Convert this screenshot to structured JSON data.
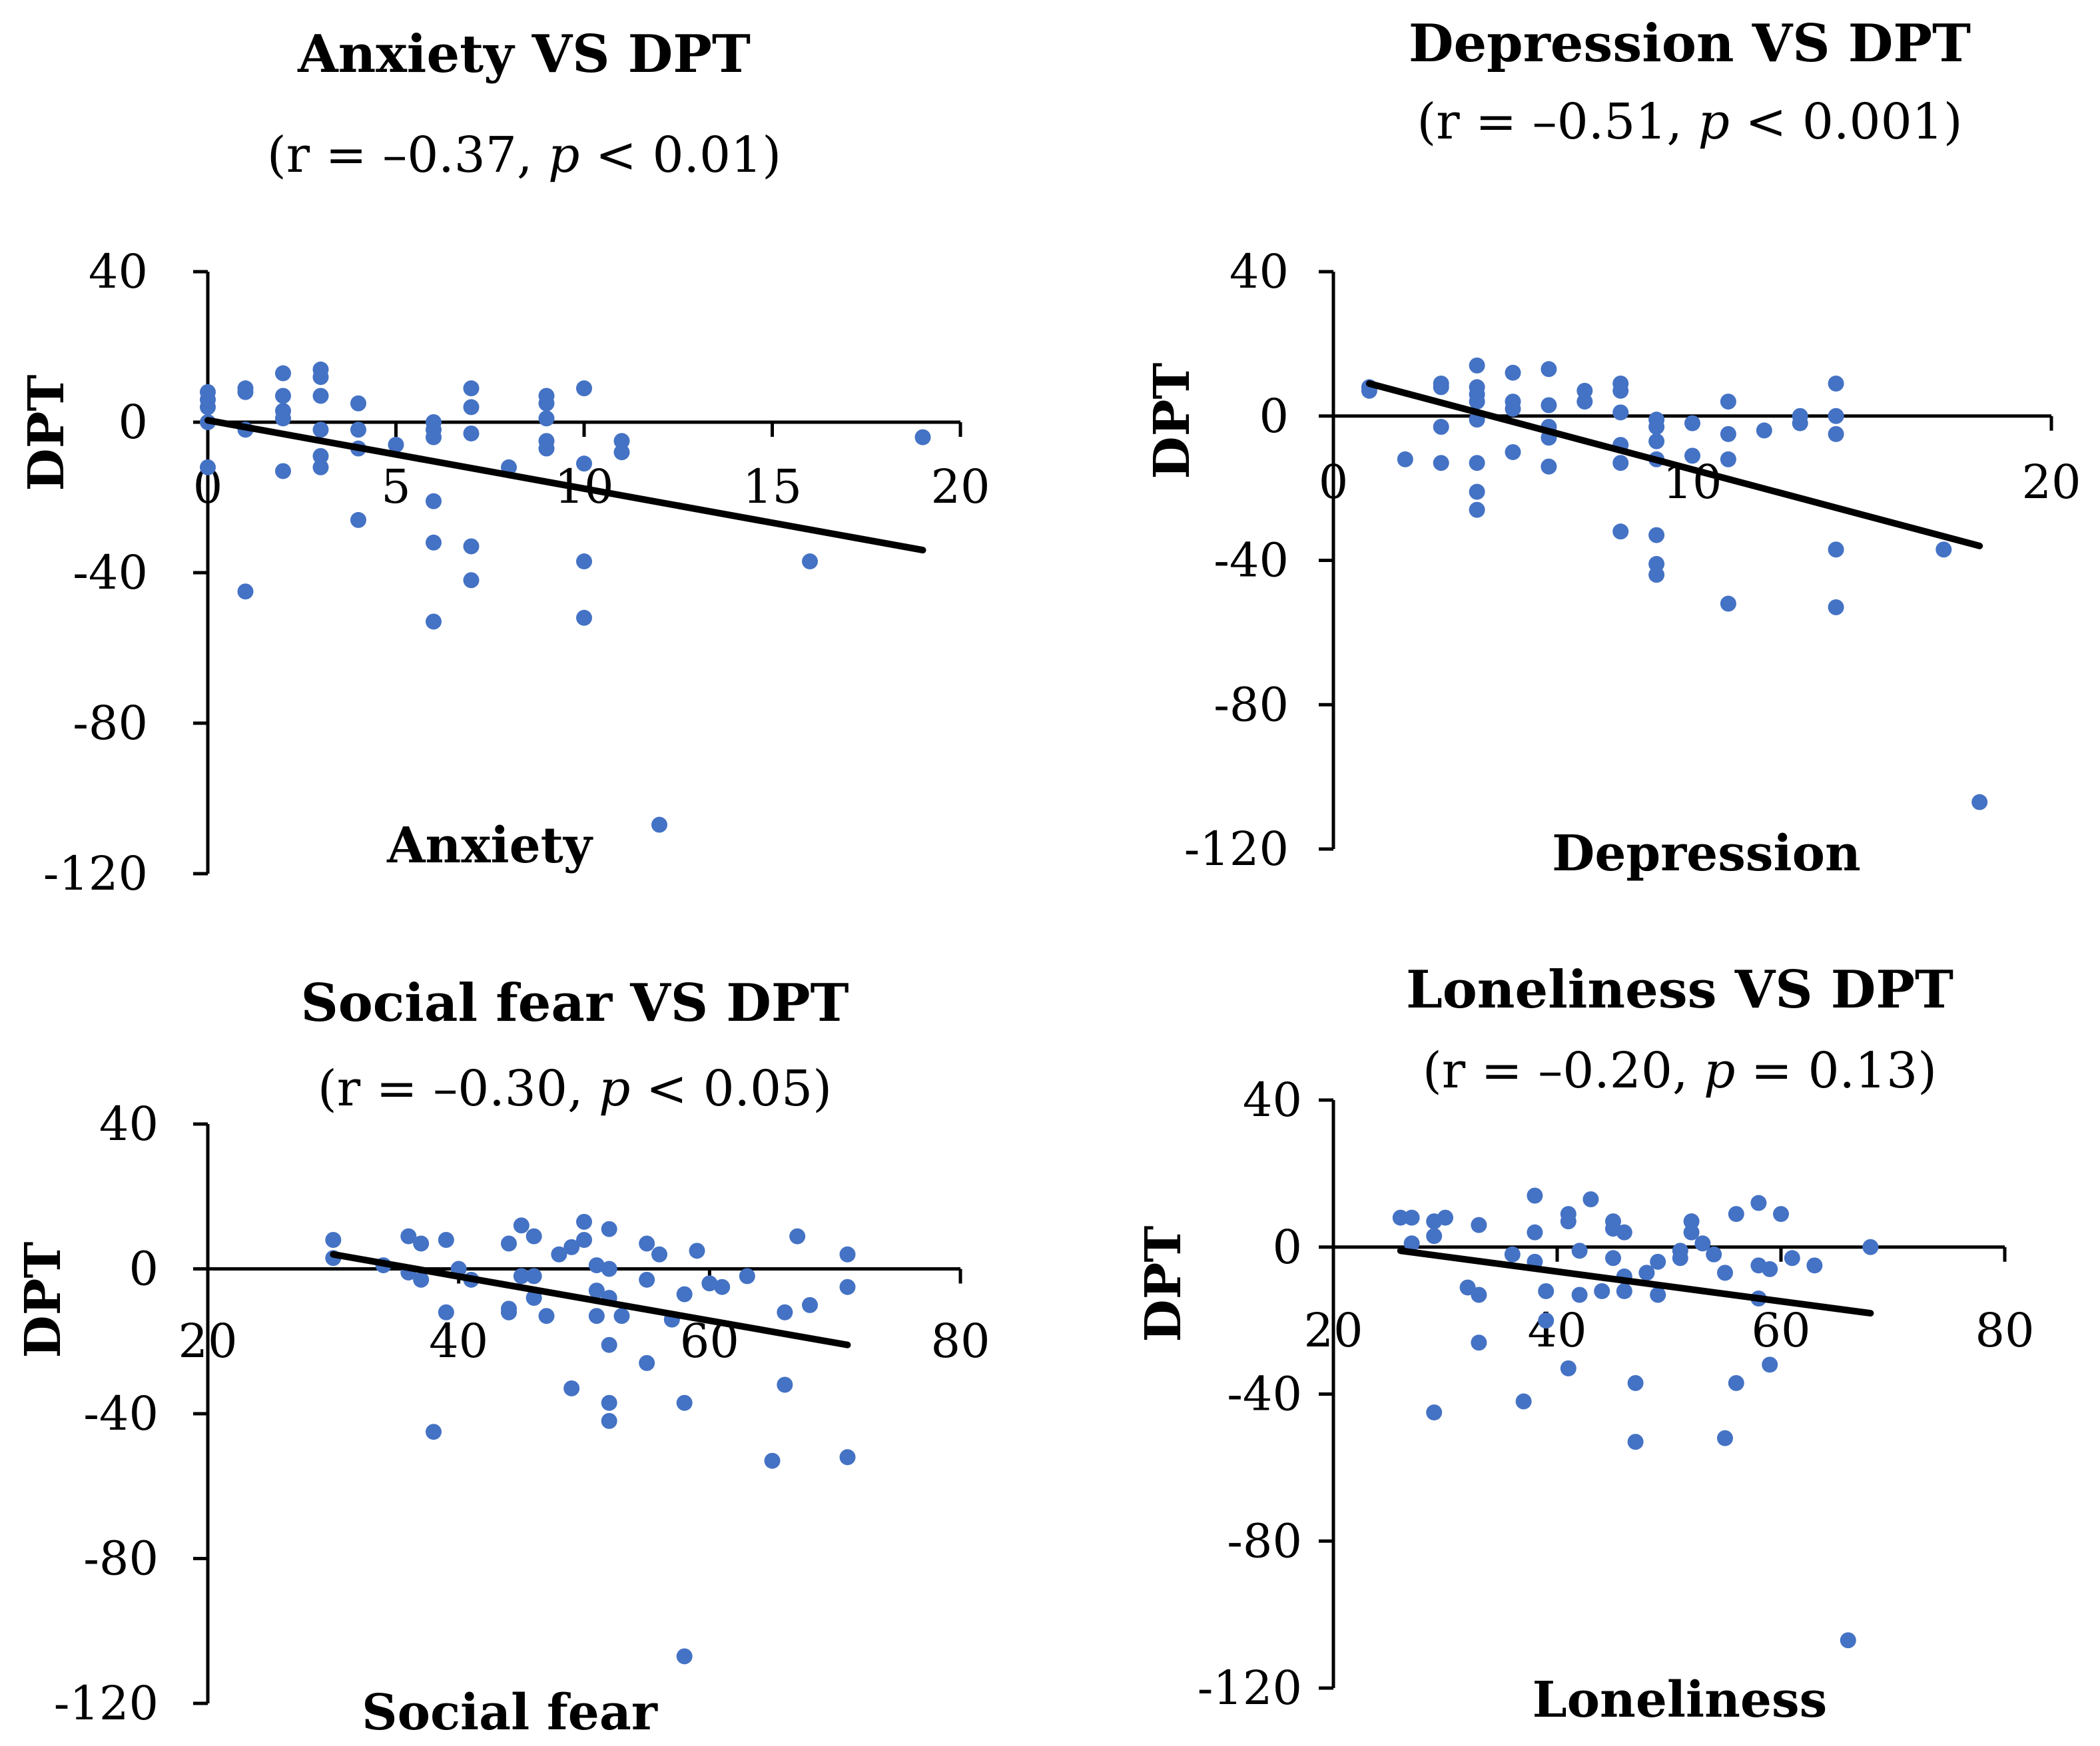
{
  "colors": {
    "points": "#4472C4",
    "axis": "#000000",
    "trend": "#000000"
  },
  "chart_data": [
    {
      "type": "scatter",
      "title": "Anxiety VS DPT",
      "subtitle": {
        "r": "(r = –0.37, ",
        "p_symbol": "p",
        "p": " < 0.01)"
      },
      "xlabel": "Anxiety",
      "ylabel": "DPT",
      "xlim": [
        0,
        20
      ],
      "ylim": [
        -120,
        40
      ],
      "xticks": [
        0,
        5,
        10,
        15,
        20
      ],
      "yticks": [
        40,
        0,
        -40,
        -80,
        -120
      ],
      "trendline": [
        [
          0,
          0.5
        ],
        [
          19,
          -34
        ]
      ],
      "points": [
        [
          0,
          8
        ],
        [
          0,
          6
        ],
        [
          0,
          4
        ],
        [
          0,
          0
        ],
        [
          0,
          -12
        ],
        [
          1,
          9
        ],
        [
          1,
          8
        ],
        [
          1,
          -2
        ],
        [
          1,
          -45
        ],
        [
          2,
          13
        ],
        [
          2,
          7
        ],
        [
          2,
          3
        ],
        [
          2,
          1
        ],
        [
          2,
          -13
        ],
        [
          3,
          14
        ],
        [
          3,
          12
        ],
        [
          3,
          7
        ],
        [
          3,
          -2
        ],
        [
          3,
          -9
        ],
        [
          3,
          -12
        ],
        [
          4,
          5
        ],
        [
          4,
          -2
        ],
        [
          4,
          -7
        ],
        [
          4,
          -26
        ],
        [
          5,
          -6
        ],
        [
          6,
          0
        ],
        [
          6,
          -2
        ],
        [
          6,
          -4
        ],
        [
          6,
          -21
        ],
        [
          6,
          -32
        ],
        [
          6,
          -53
        ],
        [
          7,
          9
        ],
        [
          7,
          4
        ],
        [
          7,
          -3
        ],
        [
          7,
          -33
        ],
        [
          7,
          -42
        ],
        [
          8,
          -12
        ],
        [
          9,
          7
        ],
        [
          9,
          5
        ],
        [
          9,
          1
        ],
        [
          9,
          -5
        ],
        [
          9,
          -7
        ],
        [
          10,
          9
        ],
        [
          10,
          -11
        ],
        [
          10,
          -37
        ],
        [
          10,
          -52
        ],
        [
          11,
          -5
        ],
        [
          11,
          -8
        ],
        [
          12,
          -107
        ],
        [
          16,
          -37
        ],
        [
          19,
          -4
        ]
      ]
    },
    {
      "type": "scatter",
      "title": "Depression VS DPT",
      "subtitle": {
        "r": "(r = –0.51, ",
        "p_symbol": "p",
        "p": " < 0.001)"
      },
      "xlabel": "Depression",
      "ylabel": "DPT",
      "xlim": [
        0,
        20
      ],
      "ylim": [
        -120,
        40
      ],
      "xticks": [
        0,
        10,
        20
      ],
      "yticks": [
        40,
        0,
        -40,
        -80,
        -120
      ],
      "trendline": [
        [
          1,
          9
        ],
        [
          18,
          -36
        ]
      ],
      "points": [
        [
          1,
          8
        ],
        [
          1,
          7
        ],
        [
          2,
          -12
        ],
        [
          3,
          9
        ],
        [
          3,
          8
        ],
        [
          3,
          -3
        ],
        [
          3,
          -13
        ],
        [
          4,
          14
        ],
        [
          4,
          8
        ],
        [
          4,
          6
        ],
        [
          4,
          4
        ],
        [
          4,
          -1
        ],
        [
          4,
          -13
        ],
        [
          4,
          -21
        ],
        [
          4,
          -26
        ],
        [
          5,
          12
        ],
        [
          5,
          4
        ],
        [
          5,
          2
        ],
        [
          5,
          -10
        ],
        [
          6,
          13
        ],
        [
          6,
          3
        ],
        [
          6,
          -3
        ],
        [
          6,
          -6
        ],
        [
          6,
          -14
        ],
        [
          7,
          7
        ],
        [
          7,
          4
        ],
        [
          8,
          9
        ],
        [
          8,
          7
        ],
        [
          8,
          1
        ],
        [
          8,
          -8
        ],
        [
          8,
          -13
        ],
        [
          8,
          -32
        ],
        [
          9,
          -1
        ],
        [
          9,
          -3
        ],
        [
          9,
          -7
        ],
        [
          9,
          -12
        ],
        [
          9,
          -33
        ],
        [
          9,
          -41
        ],
        [
          9,
          -44
        ],
        [
          10,
          -11
        ],
        [
          10,
          -2
        ],
        [
          11,
          4
        ],
        [
          11,
          -5
        ],
        [
          11,
          -12
        ],
        [
          11,
          -52
        ],
        [
          12,
          -4
        ],
        [
          13,
          0
        ],
        [
          13,
          -2
        ],
        [
          14,
          9
        ],
        [
          14,
          0
        ],
        [
          14,
          -5
        ],
        [
          14,
          -37
        ],
        [
          14,
          -53
        ],
        [
          17,
          -37
        ],
        [
          18,
          -107
        ]
      ]
    },
    {
      "type": "scatter",
      "title": "Social fear VS DPT",
      "subtitle": {
        "r": "(r = –0.30, ",
        "p_symbol": "p",
        "p": " < 0.05)"
      },
      "xlabel": "Social fear",
      "ylabel": "DPT",
      "xlim": [
        20,
        80
      ],
      "ylim": [
        -120,
        40
      ],
      "xticks": [
        20,
        40,
        60,
        80
      ],
      "yticks": [
        40,
        0,
        -40,
        -80,
        -120
      ],
      "trendline": [
        [
          30,
          4
        ],
        [
          71,
          -21
        ]
      ],
      "points": [
        [
          30,
          8
        ],
        [
          30,
          3
        ],
        [
          34,
          1
        ],
        [
          36,
          9
        ],
        [
          36,
          -1
        ],
        [
          37,
          7
        ],
        [
          37,
          -3
        ],
        [
          38,
          -45
        ],
        [
          39,
          8
        ],
        [
          39,
          -12
        ],
        [
          40,
          0
        ],
        [
          41,
          -3
        ],
        [
          44,
          7
        ],
        [
          44,
          -11
        ],
        [
          44,
          -12
        ],
        [
          45,
          12
        ],
        [
          45,
          -2
        ],
        [
          46,
          9
        ],
        [
          46,
          -2
        ],
        [
          46,
          -8
        ],
        [
          47,
          -13
        ],
        [
          48,
          4
        ],
        [
          49,
          6
        ],
        [
          49,
          -33
        ],
        [
          50,
          13
        ],
        [
          50,
          8
        ],
        [
          51,
          1
        ],
        [
          51,
          -6
        ],
        [
          51,
          -13
        ],
        [
          52,
          11
        ],
        [
          52,
          0
        ],
        [
          52,
          -8
        ],
        [
          52,
          -21
        ],
        [
          52,
          -37
        ],
        [
          52,
          -42
        ],
        [
          53,
          -13
        ],
        [
          55,
          7
        ],
        [
          55,
          -3
        ],
        [
          55,
          -26
        ],
        [
          56,
          4
        ],
        [
          57,
          -14
        ],
        [
          58,
          -7
        ],
        [
          58,
          -37
        ],
        [
          58,
          -107
        ],
        [
          59,
          5
        ],
        [
          60,
          -4
        ],
        [
          61,
          -5
        ],
        [
          63,
          -2
        ],
        [
          65,
          -53
        ],
        [
          66,
          -12
        ],
        [
          66,
          -32
        ],
        [
          67,
          9
        ],
        [
          68,
          -10
        ],
        [
          71,
          4
        ],
        [
          71,
          -5
        ],
        [
          71,
          -52
        ]
      ]
    },
    {
      "type": "scatter",
      "title": "Loneliness VS DPT",
      "subtitle": {
        "r": "(r = –0.20, ",
        "p_symbol": "p",
        "p": " = 0.13)"
      },
      "xlabel": "Loneliness",
      "ylabel": "DPT",
      "xlim": [
        20,
        80
      ],
      "ylim": [
        -120,
        40
      ],
      "xticks": [
        20,
        40,
        60,
        80
      ],
      "yticks": [
        40,
        0,
        -40,
        -80,
        -120
      ],
      "trendline": [
        [
          26,
          -1
        ],
        [
          68,
          -18
        ]
      ],
      "points": [
        [
          26,
          8
        ],
        [
          27,
          8
        ],
        [
          27,
          1
        ],
        [
          29,
          7
        ],
        [
          29,
          3
        ],
        [
          29,
          -45
        ],
        [
          30,
          8
        ],
        [
          32,
          -11
        ],
        [
          33,
          6
        ],
        [
          33,
          -13
        ],
        [
          33,
          -26
        ],
        [
          36,
          -2
        ],
        [
          37,
          -42
        ],
        [
          38,
          14
        ],
        [
          38,
          4
        ],
        [
          38,
          -4
        ],
        [
          39,
          -12
        ],
        [
          39,
          -20
        ],
        [
          41,
          9
        ],
        [
          41,
          7
        ],
        [
          41,
          -33
        ],
        [
          42,
          -1
        ],
        [
          42,
          -13
        ],
        [
          43,
          13
        ],
        [
          44,
          -12
        ],
        [
          45,
          7
        ],
        [
          45,
          5
        ],
        [
          45,
          -3
        ],
        [
          46,
          4
        ],
        [
          46,
          -8
        ],
        [
          46,
          -12
        ],
        [
          47,
          -37
        ],
        [
          47,
          -53
        ],
        [
          48,
          -7
        ],
        [
          49,
          -4
        ],
        [
          49,
          -13
        ],
        [
          51,
          -1
        ],
        [
          51,
          -3
        ],
        [
          52,
          7
        ],
        [
          52,
          4
        ],
        [
          53,
          1
        ],
        [
          54,
          -2
        ],
        [
          55,
          -7
        ],
        [
          55,
          -52
        ],
        [
          56,
          9
        ],
        [
          56,
          -37
        ],
        [
          58,
          12
        ],
        [
          58,
          -5
        ],
        [
          58,
          -14
        ],
        [
          59,
          -6
        ],
        [
          59,
          -32
        ],
        [
          60,
          9
        ],
        [
          61,
          -3
        ],
        [
          63,
          -5
        ],
        [
          66,
          -107
        ],
        [
          68,
          0
        ]
      ]
    }
  ]
}
